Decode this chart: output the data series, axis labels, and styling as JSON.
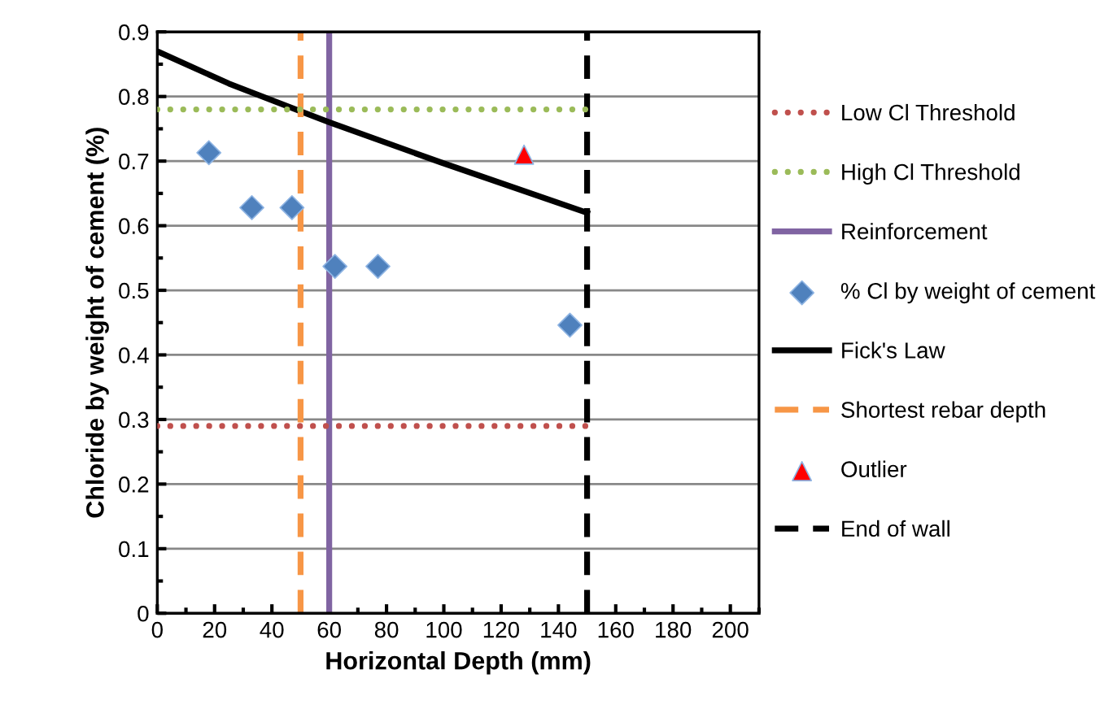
{
  "chart_data": {
    "type": "line",
    "xlabel": "Horizontal Depth (mm)",
    "ylabel": "Chloride by weight of cement (%)",
    "xlim": [
      0,
      210
    ],
    "xticks": [
      0,
      20,
      40,
      60,
      80,
      100,
      120,
      140,
      160,
      180,
      200
    ],
    "ylim": [
      0,
      0.9
    ],
    "yticks": [
      0,
      0.1,
      0.2,
      0.3,
      0.4,
      0.5,
      0.6,
      0.7,
      0.8,
      0.9
    ],
    "grid": "y",
    "legend": "right",
    "series": [
      {
        "name": "Low Cl Threshold",
        "color": "#c0504d",
        "line_style": "dotted",
        "x": [
          0,
          150
        ],
        "values": [
          0.29,
          0.29
        ]
      },
      {
        "name": "High Cl Threshold",
        "color": "#9bbb59",
        "line_style": "dotted",
        "x": [
          0,
          150
        ],
        "values": [
          0.78,
          0.78
        ]
      },
      {
        "name": "Reinforcement",
        "color": "#8064a2",
        "line_style": "solid",
        "x": [
          60,
          60
        ],
        "values": [
          0,
          0.9
        ]
      },
      {
        "name": "% Cl by weight of cement",
        "type": "scatter",
        "color": "#4f81bd",
        "marker": "diamond",
        "x": [
          18,
          33,
          47,
          62,
          77,
          144
        ],
        "values": [
          0.713,
          0.628,
          0.628,
          0.537,
          0.537,
          0.446
        ]
      },
      {
        "name": "Fick's Law",
        "color": "#000000",
        "line_style": "solid",
        "x": [
          0,
          25,
          50,
          60,
          99,
          150
        ],
        "values": [
          0.87,
          0.82,
          0.777,
          0.76,
          0.698,
          0.62
        ]
      },
      {
        "name": "Shortest rebar depth",
        "color": "#f79646",
        "line_style": "dashed",
        "x": [
          50,
          50
        ],
        "values": [
          0,
          0.9
        ]
      },
      {
        "name": "Outlier",
        "type": "scatter",
        "color": "#ff0000",
        "marker": "triangle",
        "x": [
          128
        ],
        "values": [
          0.71
        ]
      },
      {
        "name": "End of wall",
        "color": "#000000",
        "line_style": "dashed",
        "x": [
          150,
          150
        ],
        "values": [
          0,
          0.9
        ]
      }
    ]
  }
}
